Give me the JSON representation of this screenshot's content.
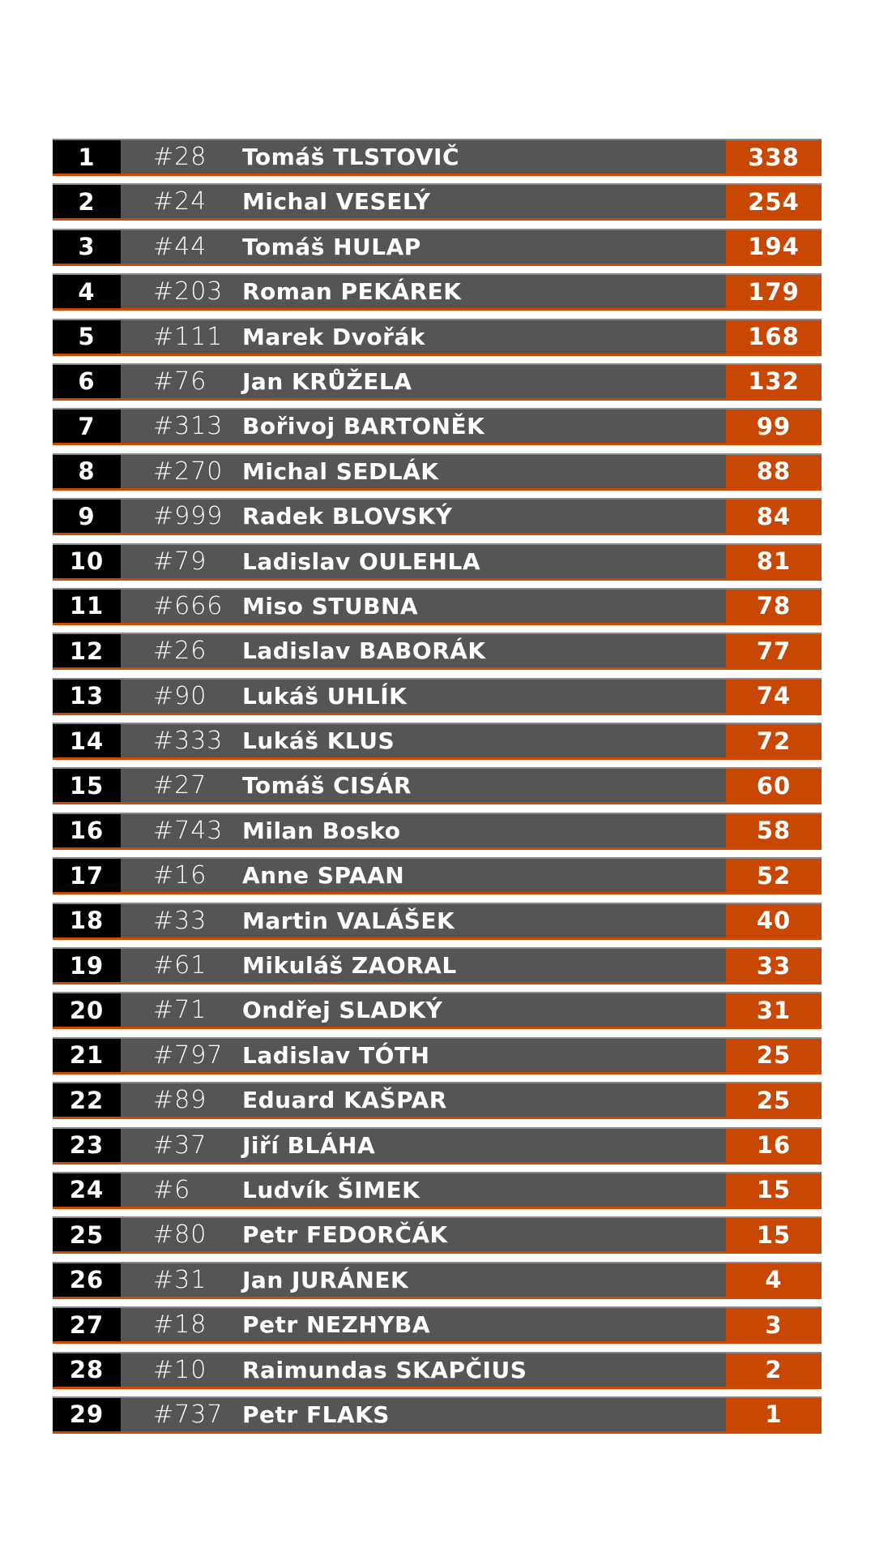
{
  "colors": {
    "rank_bg": "#000000",
    "row_bg": "#575455",
    "score_bg": "#c84702",
    "accent_line": "#d04a02"
  },
  "rows": [
    {
      "rank": "1",
      "number": "#28",
      "name": "Tomáš TLSTOVIČ",
      "score": "338"
    },
    {
      "rank": "2",
      "number": "#24",
      "name": "Michal VESELÝ",
      "score": "254"
    },
    {
      "rank": "3",
      "number": "#44",
      "name": "Tomáš HULAP",
      "score": "194"
    },
    {
      "rank": "4",
      "number": "#203",
      "name": "Roman PEKÁREK",
      "score": "179"
    },
    {
      "rank": "5",
      "number": "#111",
      "name": "Marek Dvořák",
      "score": "168"
    },
    {
      "rank": "6",
      "number": "#76",
      "name": "Jan KRŮŽELA",
      "score": "132"
    },
    {
      "rank": "7",
      "number": "#313",
      "name": "Bořivoj BARTONĚK",
      "score": "99"
    },
    {
      "rank": "8",
      "number": "#270",
      "name": "Michal SEDLÁK",
      "score": "88"
    },
    {
      "rank": "9",
      "number": "#999",
      "name": "Radek BLOVSKÝ",
      "score": "84"
    },
    {
      "rank": "10",
      "number": "#79",
      "name": "Ladislav OULEHLA",
      "score": "81"
    },
    {
      "rank": "11",
      "number": "#666",
      "name": "Miso STUBNA",
      "score": "78"
    },
    {
      "rank": "12",
      "number": "#26",
      "name": "Ladislav BABORÁK",
      "score": "77"
    },
    {
      "rank": "13",
      "number": "#90",
      "name": "Lukáš UHLÍK",
      "score": "74"
    },
    {
      "rank": "14",
      "number": "#333",
      "name": "Lukáš KLUS",
      "score": "72"
    },
    {
      "rank": "15",
      "number": "#27",
      "name": "Tomáš CISÁR",
      "score": "60"
    },
    {
      "rank": "16",
      "number": "#743",
      "name": "Milan Bosko",
      "score": "58"
    },
    {
      "rank": "17",
      "number": "#16",
      "name": "Anne SPAAN",
      "score": "52"
    },
    {
      "rank": "18",
      "number": "#33",
      "name": "Martin VALÁŠEK",
      "score": "40"
    },
    {
      "rank": "19",
      "number": "#61",
      "name": "Mikuláš ZAORAL",
      "score": "33"
    },
    {
      "rank": "20",
      "number": "#71",
      "name": "Ondřej SLADKÝ",
      "score": "31"
    },
    {
      "rank": "21",
      "number": "#797",
      "name": "Ladislav TÓTH",
      "score": "25"
    },
    {
      "rank": "22",
      "number": "#89",
      "name": "Eduard KAŠPAR",
      "score": "25"
    },
    {
      "rank": "23",
      "number": "#37",
      "name": "Jiří BLÁHA",
      "score": "16"
    },
    {
      "rank": "24",
      "number": "#6",
      "name": "Ludvík ŠIMEK",
      "score": "15"
    },
    {
      "rank": "25",
      "number": "#80",
      "name": "Petr FEDORČÁK",
      "score": "15"
    },
    {
      "rank": "26",
      "number": "#31",
      "name": "Jan JURÁNEK",
      "score": "4"
    },
    {
      "rank": "27",
      "number": "#18",
      "name": "Petr NEZHYBA",
      "score": "3"
    },
    {
      "rank": "28",
      "number": "#10",
      "name": "Raimundas SKAPČIUS",
      "score": "2"
    },
    {
      "rank": "29",
      "number": "#737",
      "name": "Petr FLAKS",
      "score": "1"
    }
  ]
}
